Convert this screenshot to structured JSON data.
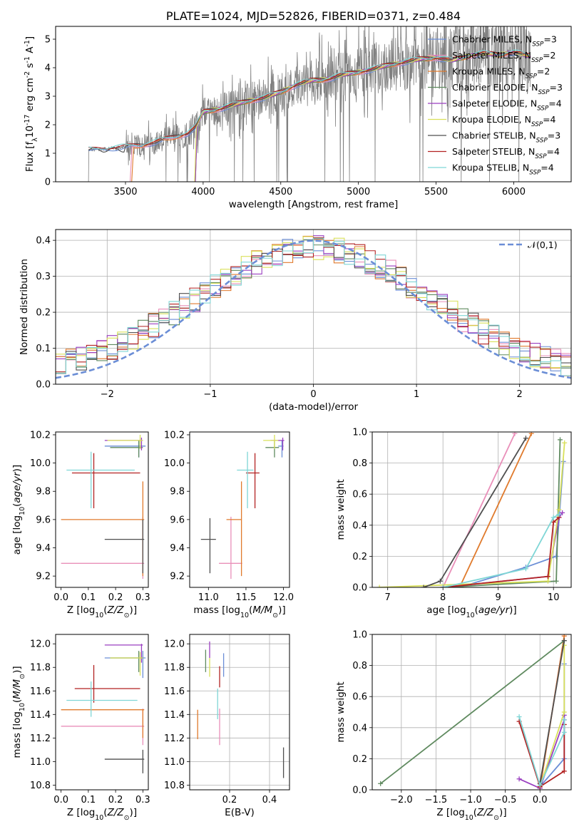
{
  "colors": {
    "Chabrier MILES": "#6b8ed6",
    "Salpeter MILES": "#e98fb9",
    "Kroupa MILES": "#e07a2c",
    "Chabrier ELODIE": "#5f8a5f",
    "Salpeter ELODIE": "#9a3fc0",
    "Kroupa ELODIE": "#d9e05a",
    "Chabrier STELIB": "#4f4f4f",
    "Salpeter STELIB": "#b22222",
    "Kroupa STELIB": "#7fd6d6",
    "normal": "#6b8ed6",
    "grid": "#b0b0b0",
    "spectrum": "#808080"
  },
  "chart_data": [
    {
      "id": "spectrum",
      "type": "line",
      "title": "PLATE=1024, MJD=52826, FIBERID=0371, z=0.484",
      "xlabel": "wavelength [Angstrom, rest frame]",
      "ylabel": "Flux [f$_\\lambda$10$^{-17}$ erg cm$^{-2}$ s$^{-1}$ A$^{-1}$]",
      "xlim": [
        3050,
        6370
      ],
      "ylim": [
        0,
        5.45
      ],
      "xticks": [
        3500,
        4000,
        4500,
        5000,
        5500,
        6000
      ],
      "yticks": [
        0,
        1,
        2,
        3,
        4,
        5
      ],
      "grid": false,
      "legend_position": "upper right",
      "series": [
        {
          "name": "Chabrier MILES",
          "nssp": 3
        },
        {
          "name": "Salpeter MILES",
          "nssp": 2
        },
        {
          "name": "Kroupa MILES",
          "nssp": 2
        },
        {
          "name": "Chabrier ELODIE",
          "nssp": 3
        },
        {
          "name": "Salpeter ELODIE",
          "nssp": 4
        },
        {
          "name": "Kroupa ELODIE",
          "nssp": 4
        },
        {
          "name": "Chabrier STELIB",
          "nssp": 3
        },
        {
          "name": "Salpeter STELIB",
          "nssp": 4
        },
        {
          "name": "Kroupa STELIB",
          "nssp": 4
        }
      ],
      "model_curve": {
        "x": [
          3270,
          3300,
          3400,
          3500,
          3600,
          3700,
          3800,
          3900,
          3950,
          4000,
          4100,
          4200,
          4300,
          4400,
          4500,
          4600,
          4700,
          4800,
          4900,
          5000,
          5100,
          5200,
          5300,
          5400,
          5500,
          5600,
          5700,
          5800,
          5900,
          6000,
          6100,
          6200
        ],
        "y": [
          1.12,
          1.12,
          1.18,
          1.22,
          1.28,
          1.4,
          1.55,
          1.7,
          1.9,
          2.45,
          2.55,
          2.7,
          2.85,
          2.95,
          3.15,
          3.4,
          3.55,
          3.6,
          3.75,
          3.85,
          3.95,
          4.1,
          4.2,
          4.3,
          4.35,
          4.25,
          4.4,
          4.5,
          4.45,
          4.55,
          4.4,
          4.5
        ]
      }
    },
    {
      "id": "residuals",
      "type": "line",
      "xlabel": "(data-model)/error",
      "ylabel": "Normed distribution",
      "xlim": [
        -2.5,
        2.5
      ],
      "ylim": [
        0,
        0.43
      ],
      "xticks": [
        -2,
        -1,
        0,
        1,
        2
      ],
      "yticks": [
        0.0,
        0.1,
        0.2,
        0.3,
        0.4
      ],
      "grid": true,
      "legend": {
        "label": "$\\mathcal{N}(0,1)$",
        "position": "upper right"
      }
    },
    {
      "id": "age-vs-Z",
      "type": "scatter",
      "xlabel": "Z [log$_{10}$($Z/Z_\\odot$)]",
      "ylabel": "age  [log$_{10}$($age/yr$)]",
      "xlim": [
        -0.02,
        0.32
      ],
      "ylim": [
        9.12,
        10.22
      ],
      "xticks": [
        0.0,
        0.1,
        0.2,
        0.3
      ],
      "yticks": [
        9.2,
        9.4,
        9.6,
        9.8,
        10.0,
        10.2
      ],
      "grid": false,
      "points": [
        {
          "model": "Chabrier MILES",
          "x": 0.285,
          "y": 10.12,
          "x_lo": 0.16,
          "x_hi": 0.31,
          "y_lo": 10.04,
          "y_hi": 10.16
        },
        {
          "model": "Salpeter MILES",
          "x": 0.3,
          "y": 9.29,
          "x_lo": 0.0,
          "x_hi": 0.305,
          "y_lo": 9.18,
          "y_hi": 9.62
        },
        {
          "model": "Kroupa MILES",
          "x": 0.3,
          "y": 9.6,
          "x_lo": 0.0,
          "x_hi": 0.305,
          "y_lo": 9.2,
          "y_hi": 9.87
        },
        {
          "model": "Chabrier ELODIE",
          "x": 0.285,
          "y": 10.11,
          "x_lo": 0.18,
          "x_hi": 0.3,
          "y_lo": 10.04,
          "y_hi": 10.16
        },
        {
          "model": "Salpeter ELODIE",
          "x": 0.295,
          "y": 10.16,
          "x_lo": 0.16,
          "x_hi": 0.3,
          "y_lo": 10.09,
          "y_hi": 10.18
        },
        {
          "model": "Kroupa ELODIE",
          "x": 0.29,
          "y": 10.16,
          "x_lo": 0.17,
          "x_hi": 0.3,
          "y_lo": 10.1,
          "y_hi": 10.2
        },
        {
          "model": "Chabrier STELIB",
          "x": 0.3,
          "y": 9.46,
          "x_lo": 0.16,
          "x_hi": 0.305,
          "y_lo": 9.22,
          "y_hi": 9.6
        },
        {
          "model": "Salpeter STELIB",
          "x": 0.12,
          "y": 9.93,
          "x_lo": 0.04,
          "x_hi": 0.29,
          "y_lo": 9.68,
          "y_hi": 10.07
        },
        {
          "model": "Kroupa STELIB",
          "x": 0.11,
          "y": 9.95,
          "x_lo": 0.02,
          "x_hi": 0.27,
          "y_lo": 9.68,
          "y_hi": 10.08
        }
      ]
    },
    {
      "id": "age-vs-mass",
      "type": "scatter",
      "xlabel": "mass [log$_{10}$($M/M_\\odot$)]",
      "xlim": [
        10.75,
        12.08
      ],
      "ylim": [
        9.12,
        10.22
      ],
      "xticks": [
        11.0,
        11.5,
        12.0
      ],
      "yticks": [
        9.2,
        9.4,
        9.6,
        9.8,
        10.0,
        10.2
      ],
      "grid": false,
      "points": [
        {
          "model": "Chabrier MILES",
          "x": 11.98,
          "y": 10.12,
          "x_lo": 11.93,
          "x_hi": 12.0,
          "y_lo": 10.04,
          "y_hi": 10.16
        },
        {
          "model": "Salpeter MILES",
          "x": 11.3,
          "y": 9.29,
          "x_lo": 11.14,
          "x_hi": 11.45,
          "y_lo": 9.18,
          "y_hi": 9.62
        },
        {
          "model": "Kroupa MILES",
          "x": 11.44,
          "y": 9.6,
          "x_lo": 11.24,
          "x_hi": 11.44,
          "y_lo": 9.2,
          "y_hi": 9.87
        },
        {
          "model": "Chabrier ELODIE",
          "x": 11.88,
          "y": 10.11,
          "x_lo": 11.76,
          "x_hi": 11.94,
          "y_lo": 10.04,
          "y_hi": 10.16
        },
        {
          "model": "Salpeter ELODIE",
          "x": 11.99,
          "y": 10.16,
          "x_lo": 11.83,
          "x_hi": 12.01,
          "y_lo": 10.09,
          "y_hi": 10.18
        },
        {
          "model": "Kroupa ELODIE",
          "x": 11.88,
          "y": 10.16,
          "x_lo": 11.73,
          "x_hi": 11.93,
          "y_lo": 10.1,
          "y_hi": 10.2
        },
        {
          "model": "Chabrier STELIB",
          "x": 11.02,
          "y": 9.46,
          "x_lo": 10.9,
          "x_hi": 11.1,
          "y_lo": 9.22,
          "y_hi": 9.61
        },
        {
          "model": "Salpeter STELIB",
          "x": 11.62,
          "y": 9.93,
          "x_lo": 11.5,
          "x_hi": 11.68,
          "y_lo": 9.68,
          "y_hi": 10.07
        },
        {
          "model": "Kroupa STELIB",
          "x": 11.52,
          "y": 9.95,
          "x_lo": 11.38,
          "x_hi": 11.6,
          "y_lo": 9.68,
          "y_hi": 10.08
        }
      ]
    },
    {
      "id": "massweight-vs-age",
      "type": "line",
      "xlabel": "age  [log$_{10}$($age/yr$)]",
      "ylabel": "mass weight",
      "xlim": [
        6.72,
        10.32
      ],
      "ylim": [
        0,
        1.0
      ],
      "xticks": [
        7,
        8,
        9,
        10
      ],
      "yticks": [
        0.0,
        0.2,
        0.4,
        0.6,
        0.8,
        1.0
      ],
      "grid": true,
      "series": [
        {
          "model": "Chabrier MILES",
          "x": [
            8.3,
            9.5,
            10.05,
            10.18
          ],
          "y": [
            0.0,
            0.13,
            0.2,
            0.81
          ]
        },
        {
          "model": "Salpeter MILES",
          "x": [
            8.0,
            9.3
          ],
          "y": [
            0.0,
            0.99
          ]
        },
        {
          "model": "Kroupa MILES",
          "x": [
            8.3,
            9.6
          ],
          "y": [
            0.0,
            0.99
          ]
        },
        {
          "model": "Chabrier ELODIE",
          "x": [
            8.0,
            10.05,
            10.12
          ],
          "y": [
            0.0,
            0.04,
            0.95
          ]
        },
        {
          "model": "Salpeter ELODIE",
          "x": [
            8.0,
            9.9,
            10.1,
            10.16
          ],
          "y": [
            0.0,
            0.07,
            0.45,
            0.48
          ]
        },
        {
          "model": "Kroupa ELODIE",
          "x": [
            6.85,
            9.9,
            10.1,
            10.2
          ],
          "y": [
            0.0,
            0.04,
            0.5,
            0.93
          ]
        },
        {
          "model": "Chabrier STELIB",
          "x": [
            7.65,
            7.95,
            9.5
          ],
          "y": [
            0.0,
            0.04,
            0.96
          ]
        },
        {
          "model": "Salpeter STELIB",
          "x": [
            8.0,
            9.9,
            10.0,
            10.1
          ],
          "y": [
            0.0,
            0.07,
            0.42,
            0.45
          ]
        },
        {
          "model": "Kroupa STELIB",
          "x": [
            8.0,
            9.5,
            10.0,
            10.1
          ],
          "y": [
            0.0,
            0.12,
            0.45,
            0.47
          ]
        }
      ]
    },
    {
      "id": "mass-vs-Z",
      "type": "scatter",
      "xlabel": "Z [log$_{10}$($Z/Z_\\odot$)]",
      "ylabel": "mass [log$_{10}$($M/M_\\odot$)]",
      "xlim": [
        -0.02,
        0.32
      ],
      "ylim": [
        10.76,
        12.08
      ],
      "xticks": [
        0.0,
        0.1,
        0.2,
        0.3
      ],
      "yticks": [
        10.8,
        11.0,
        11.2,
        11.4,
        11.6,
        11.8,
        12.0
      ],
      "grid": false,
      "points": [
        {
          "model": "Chabrier MILES",
          "x": 0.3,
          "y": 11.88,
          "x_lo": 0.16,
          "x_hi": 0.31,
          "y_lo": 11.71,
          "y_hi": 11.94
        },
        {
          "model": "Salpeter MILES",
          "x": 0.3,
          "y": 11.3,
          "x_lo": 0.0,
          "x_hi": 0.305,
          "y_lo": 11.14,
          "y_hi": 11.45
        },
        {
          "model": "Kroupa MILES",
          "x": 0.3,
          "y": 11.44,
          "x_lo": 0.0,
          "x_hi": 0.305,
          "y_lo": 11.2,
          "y_hi": 11.44
        },
        {
          "model": "Chabrier ELODIE",
          "x": 0.285,
          "y": 11.88,
          "x_lo": 0.18,
          "x_hi": 0.3,
          "y_lo": 11.76,
          "y_hi": 11.94
        },
        {
          "model": "Salpeter ELODIE",
          "x": 0.295,
          "y": 11.99,
          "x_lo": 0.16,
          "x_hi": 0.3,
          "y_lo": 11.84,
          "y_hi": 12.0
        },
        {
          "model": "Kroupa ELODIE",
          "x": 0.29,
          "y": 11.88,
          "x_lo": 0.18,
          "x_hi": 0.3,
          "y_lo": 11.73,
          "y_hi": 11.93
        },
        {
          "model": "Chabrier STELIB",
          "x": 0.3,
          "y": 11.02,
          "x_lo": 0.16,
          "x_hi": 0.305,
          "y_lo": 10.9,
          "y_hi": 11.1
        },
        {
          "model": "Salpeter STELIB",
          "x": 0.12,
          "y": 11.62,
          "x_lo": 0.05,
          "x_hi": 0.29,
          "y_lo": 11.5,
          "y_hi": 11.82
        },
        {
          "model": "Kroupa STELIB",
          "x": 0.11,
          "y": 11.52,
          "x_lo": 0.02,
          "x_hi": 0.28,
          "y_lo": 11.38,
          "y_hi": 11.68
        }
      ]
    },
    {
      "id": "mass-vs-EBV",
      "type": "scatter",
      "xlabel": "E(B-V)",
      "xlim": [
        0.0,
        0.5
      ],
      "ylim": [
        10.76,
        12.08
      ],
      "xticks": [
        0.2,
        0.4
      ],
      "yticks": [
        10.8,
        11.0,
        11.2,
        11.4,
        11.6,
        11.8,
        12.0
      ],
      "grid": true,
      "points": [
        {
          "model": "Chabrier MILES",
          "x": 0.17,
          "y": 11.83,
          "y_lo": 11.72,
          "y_hi": 11.92
        },
        {
          "model": "Salpeter MILES",
          "x": 0.15,
          "y": 11.3,
          "y_lo": 11.14,
          "y_hi": 11.45
        },
        {
          "model": "Kroupa MILES",
          "x": 0.04,
          "y": 11.32,
          "y_lo": 11.19,
          "y_hi": 11.44
        },
        {
          "model": "Chabrier ELODIE",
          "x": 0.08,
          "y": 11.85,
          "y_lo": 11.76,
          "y_hi": 11.95
        },
        {
          "model": "Salpeter ELODIE",
          "x": 0.1,
          "y": 11.95,
          "y_lo": 11.88,
          "y_hi": 12.02
        },
        {
          "model": "Kroupa ELODIE",
          "x": 0.1,
          "y": 11.8,
          "y_lo": 11.72,
          "y_hi": 11.88
        },
        {
          "model": "Chabrier STELIB",
          "x": 0.47,
          "y": 11.0,
          "y_lo": 10.86,
          "y_hi": 11.12
        },
        {
          "model": "Salpeter STELIB",
          "x": 0.15,
          "y": 11.74,
          "y_lo": 11.63,
          "y_hi": 11.81
        },
        {
          "model": "Kroupa STELIB",
          "x": 0.14,
          "y": 11.52,
          "y_lo": 11.36,
          "y_hi": 11.62
        }
      ]
    },
    {
      "id": "massweight-vs-Z",
      "type": "line",
      "xlabel": "Z [log$_{10}$($Z/Z_\\odot$)]",
      "ylabel": "mass weight",
      "xlim": [
        -2.42,
        0.45
      ],
      "ylim": [
        0,
        1.0
      ],
      "xticks": [
        -2.0,
        -1.5,
        -1.0,
        -0.5,
        0.0
      ],
      "yticks": [
        0.0,
        0.2,
        0.4,
        0.6,
        0.8,
        1.0
      ],
      "grid": true,
      "series": [
        {
          "model": "Chabrier MILES",
          "x": [
            0.0,
            0.35,
            0.35
          ],
          "y": [
            0.02,
            0.2,
            0.81
          ]
        },
        {
          "model": "Salpeter MILES",
          "x": [
            0.0,
            0.35
          ],
          "y": [
            0.01,
            0.99
          ]
        },
        {
          "model": "Kroupa MILES",
          "x": [
            0.0,
            0.35
          ],
          "y": [
            0.01,
            0.99
          ]
        },
        {
          "model": "Chabrier ELODIE",
          "x": [
            -2.3,
            0.35
          ],
          "y": [
            0.04,
            0.96
          ]
        },
        {
          "model": "Salpeter ELODIE",
          "x": [
            -0.3,
            0.0,
            0.35,
            0.35
          ],
          "y": [
            0.07,
            0.01,
            0.45,
            0.48
          ]
        },
        {
          "model": "Kroupa ELODIE",
          "x": [
            0.0,
            0.35,
            0.35
          ],
          "y": [
            0.02,
            0.5,
            0.93
          ]
        },
        {
          "model": "Chabrier STELIB",
          "x": [
            0.0,
            0.35
          ],
          "y": [
            0.04,
            0.96
          ]
        },
        {
          "model": "Salpeter STELIB",
          "x": [
            -0.3,
            0.0,
            0.35,
            0.35
          ],
          "y": [
            0.44,
            0.02,
            0.12,
            0.42
          ]
        },
        {
          "model": "Kroupa STELIB",
          "x": [
            -0.3,
            0.0,
            0.35,
            0.35
          ],
          "y": [
            0.47,
            0.03,
            0.37,
            0.45
          ]
        }
      ]
    }
  ]
}
